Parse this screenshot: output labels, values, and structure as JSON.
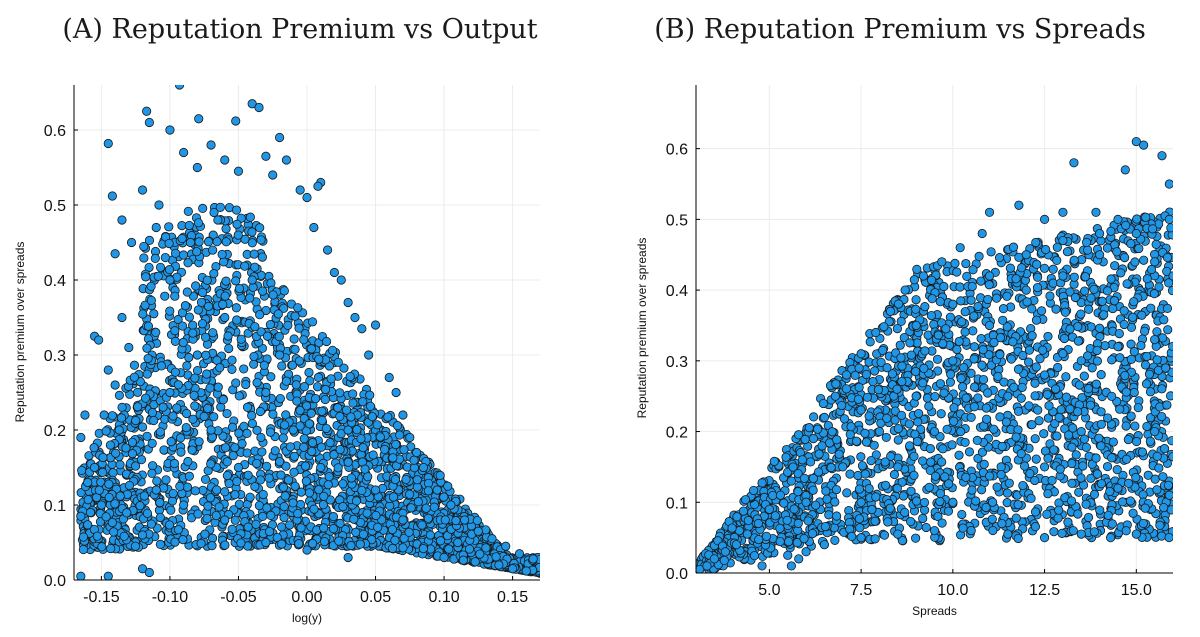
{
  "chart_data": [
    {
      "type": "scatter",
      "panel_label": "A",
      "title": "Reputation Premium vs Output",
      "xlabel": "log(y)",
      "ylabel": "Reputation premium over spreads",
      "xlim": [
        -0.17,
        0.17
      ],
      "ylim": [
        0.0,
        0.66
      ],
      "xticks": [
        -0.15,
        -0.1,
        -0.05,
        0.0,
        0.05,
        0.1,
        0.15
      ],
      "xtick_labels": [
        "-0.15",
        "-0.10",
        "-0.05",
        "0.00",
        "0.05",
        "0.10",
        "0.15"
      ],
      "yticks": [
        0.0,
        0.1,
        0.2,
        0.3,
        0.4,
        0.5,
        0.6
      ],
      "ytick_labels": [
        "0.0",
        "0.1",
        "0.2",
        "0.3",
        "0.4",
        "0.5",
        "0.6"
      ],
      "grid": true,
      "marker_color": "#1f96e6",
      "marker_edge": "#1a1a1a",
      "points": [
        [
          -0.093,
          0.66
        ],
        [
          -0.117,
          0.625
        ],
        [
          -0.04,
          0.635
        ],
        [
          -0.035,
          0.63
        ],
        [
          -0.115,
          0.61
        ],
        [
          -0.145,
          0.582
        ],
        [
          -0.079,
          0.615
        ],
        [
          -0.052,
          0.612
        ],
        [
          -0.02,
          0.59
        ],
        [
          -0.1,
          0.6
        ],
        [
          -0.07,
          0.58
        ],
        [
          -0.09,
          0.57
        ],
        [
          -0.06,
          0.56
        ],
        [
          -0.03,
          0.565
        ],
        [
          -0.015,
          0.56
        ],
        [
          0.01,
          0.53
        ],
        [
          0.008,
          0.525
        ],
        [
          -0.142,
          0.512
        ],
        [
          -0.135,
          0.48
        ],
        [
          -0.128,
          0.45
        ],
        [
          -0.14,
          0.435
        ],
        [
          -0.12,
          0.52
        ],
        [
          -0.108,
          0.5
        ],
        [
          -0.11,
          0.47
        ],
        [
          -0.08,
          0.55
        ],
        [
          -0.05,
          0.545
        ],
        [
          -0.025,
          0.54
        ],
        [
          -0.005,
          0.52
        ],
        [
          0.0,
          0.51
        ],
        [
          0.005,
          0.47
        ],
        [
          -0.155,
          0.325
        ],
        [
          -0.152,
          0.32
        ],
        [
          -0.165,
          0.19
        ],
        [
          -0.162,
          0.22
        ],
        [
          -0.16,
          0.13
        ],
        [
          -0.145,
          0.28
        ],
        [
          -0.14,
          0.26
        ],
        [
          -0.148,
          0.22
        ],
        [
          -0.155,
          0.15
        ],
        [
          -0.15,
          0.1
        ],
        [
          -0.158,
          0.09
        ],
        [
          -0.135,
          0.35
        ],
        [
          -0.13,
          0.31
        ],
        [
          -0.137,
          0.2
        ],
        [
          -0.165,
          0.085
        ],
        [
          0.015,
          0.44
        ],
        [
          0.02,
          0.41
        ],
        [
          0.025,
          0.4
        ],
        [
          0.03,
          0.37
        ],
        [
          0.035,
          0.35
        ],
        [
          0.04,
          0.335
        ],
        [
          0.05,
          0.34
        ],
        [
          0.045,
          0.3
        ],
        [
          0.06,
          0.27
        ],
        [
          0.065,
          0.25
        ],
        [
          0.07,
          0.22
        ],
        [
          0.075,
          0.19
        ],
        [
          0.08,
          0.17
        ],
        [
          0.085,
          0.15
        ],
        [
          0.095,
          0.12
        ],
        [
          0.105,
          0.1
        ],
        [
          0.115,
          0.08
        ],
        [
          0.125,
          0.065
        ],
        [
          0.135,
          0.055
        ],
        [
          0.145,
          0.045
        ],
        [
          0.155,
          0.035
        ],
        [
          0.165,
          0.028
        ],
        [
          0.16,
          0.012
        ],
        [
          0.15,
          0.015
        ],
        [
          0.14,
          0.02
        ],
        [
          -0.165,
          0.005
        ],
        [
          -0.145,
          0.005
        ],
        [
          -0.12,
          0.015
        ],
        [
          -0.115,
          0.01
        ],
        [
          0.1,
          0.03
        ],
        [
          -0.09,
          0.1
        ],
        [
          -0.06,
          0.08
        ],
        [
          -0.03,
          0.05
        ],
        [
          0.0,
          0.04
        ],
        [
          0.03,
          0.03
        ],
        [
          -0.1,
          0.25
        ],
        [
          -0.08,
          0.3
        ],
        [
          -0.06,
          0.35
        ],
        [
          -0.04,
          0.4
        ],
        [
          -0.02,
          0.3
        ],
        [
          -0.07,
          0.2
        ],
        [
          -0.05,
          0.15
        ],
        [
          -0.03,
          0.25
        ],
        [
          -0.01,
          0.2
        ],
        [
          0.01,
          0.15
        ],
        [
          0.03,
          0.2
        ],
        [
          0.05,
          0.12
        ],
        [
          0.07,
          0.08
        ],
        [
          0.09,
          0.06
        ],
        [
          0.11,
          0.05
        ],
        [
          -0.11,
          0.12
        ],
        [
          -0.12,
          0.06
        ],
        [
          -0.1,
          0.4
        ],
        [
          -0.085,
          0.45
        ],
        [
          -0.065,
          0.48
        ]
      ]
    },
    {
      "type": "scatter",
      "panel_label": "B",
      "title": "Reputation Premium vs Spreads",
      "xlabel": "Spreads",
      "ylabel": "Reputation premium over spreads",
      "xlim": [
        3.0,
        16.0
      ],
      "ylim": [
        0.0,
        0.69
      ],
      "xticks": [
        5.0,
        7.5,
        10.0,
        12.5,
        15.0
      ],
      "xtick_labels": [
        "5.0",
        "7.5",
        "10.0",
        "12.5",
        "15.0"
      ],
      "yticks": [
        0.0,
        0.1,
        0.2,
        0.3,
        0.4,
        0.5,
        0.6
      ],
      "ytick_labels": [
        "0.0",
        "0.1",
        "0.2",
        "0.3",
        "0.4",
        "0.5",
        "0.6"
      ],
      "grid": true,
      "marker_color": "#1f96e6",
      "marker_edge": "#1a1a1a",
      "points": [
        [
          3.1,
          0.005
        ],
        [
          3.3,
          0.01
        ],
        [
          3.5,
          0.02
        ],
        [
          3.8,
          0.03
        ],
        [
          4.1,
          0.04
        ],
        [
          4.4,
          0.055
        ],
        [
          4.7,
          0.07
        ],
        [
          5.0,
          0.09
        ],
        [
          5.3,
          0.11
        ],
        [
          5.6,
          0.13
        ],
        [
          5.9,
          0.16
        ],
        [
          6.2,
          0.19
        ],
        [
          6.5,
          0.22
        ],
        [
          6.8,
          0.25
        ],
        [
          7.1,
          0.28
        ],
        [
          7.5,
          0.31
        ],
        [
          7.9,
          0.34
        ],
        [
          8.3,
          0.37
        ],
        [
          8.7,
          0.4
        ],
        [
          9.2,
          0.42
        ],
        [
          9.7,
          0.44
        ],
        [
          10.2,
          0.46
        ],
        [
          10.8,
          0.48
        ],
        [
          11.0,
          0.51
        ],
        [
          11.8,
          0.52
        ],
        [
          12.5,
          0.5
        ],
        [
          13.0,
          0.51
        ],
        [
          13.3,
          0.58
        ],
        [
          13.9,
          0.51
        ],
        [
          14.5,
          0.5
        ],
        [
          14.7,
          0.57
        ],
        [
          15.0,
          0.61
        ],
        [
          15.2,
          0.605
        ],
        [
          15.7,
          0.59
        ],
        [
          15.9,
          0.55
        ],
        [
          15.9,
          0.5
        ],
        [
          15.5,
          0.44
        ],
        [
          16.0,
          0.42
        ],
        [
          15.8,
          0.29
        ],
        [
          15.9,
          0.11
        ],
        [
          15.0,
          0.055
        ],
        [
          14.3,
          0.05
        ],
        [
          13.5,
          0.055
        ],
        [
          12.5,
          0.05
        ],
        [
          11.5,
          0.055
        ],
        [
          10.5,
          0.06
        ],
        [
          9.5,
          0.06
        ],
        [
          8.5,
          0.055
        ],
        [
          7.5,
          0.05
        ],
        [
          6.5,
          0.04
        ],
        [
          5.5,
          0.025
        ],
        [
          5.6,
          0.01
        ],
        [
          5.8,
          0.02
        ],
        [
          6.0,
          0.03
        ],
        [
          4.8,
          0.01
        ],
        [
          6.0,
          0.1
        ],
        [
          7.0,
          0.15
        ],
        [
          8.0,
          0.2
        ],
        [
          9.0,
          0.25
        ],
        [
          10.0,
          0.3
        ],
        [
          11.0,
          0.35
        ],
        [
          12.0,
          0.4
        ],
        [
          13.0,
          0.42
        ],
        [
          14.0,
          0.45
        ],
        [
          15.0,
          0.48
        ],
        [
          7.5,
          0.1
        ],
        [
          8.5,
          0.15
        ],
        [
          9.5,
          0.2
        ],
        [
          10.5,
          0.22
        ],
        [
          11.5,
          0.25
        ],
        [
          12.5,
          0.28
        ],
        [
          13.5,
          0.3
        ],
        [
          14.5,
          0.32
        ],
        [
          15.5,
          0.33
        ],
        [
          9.0,
          0.35
        ],
        [
          10.0,
          0.38
        ],
        [
          11.0,
          0.42
        ],
        [
          12.0,
          0.45
        ],
        [
          13.0,
          0.47
        ],
        [
          14.0,
          0.48
        ],
        [
          12.5,
          0.15
        ],
        [
          13.5,
          0.2
        ],
        [
          14.5,
          0.12
        ],
        [
          15.5,
          0.2
        ],
        [
          10.0,
          0.1
        ]
      ]
    }
  ]
}
